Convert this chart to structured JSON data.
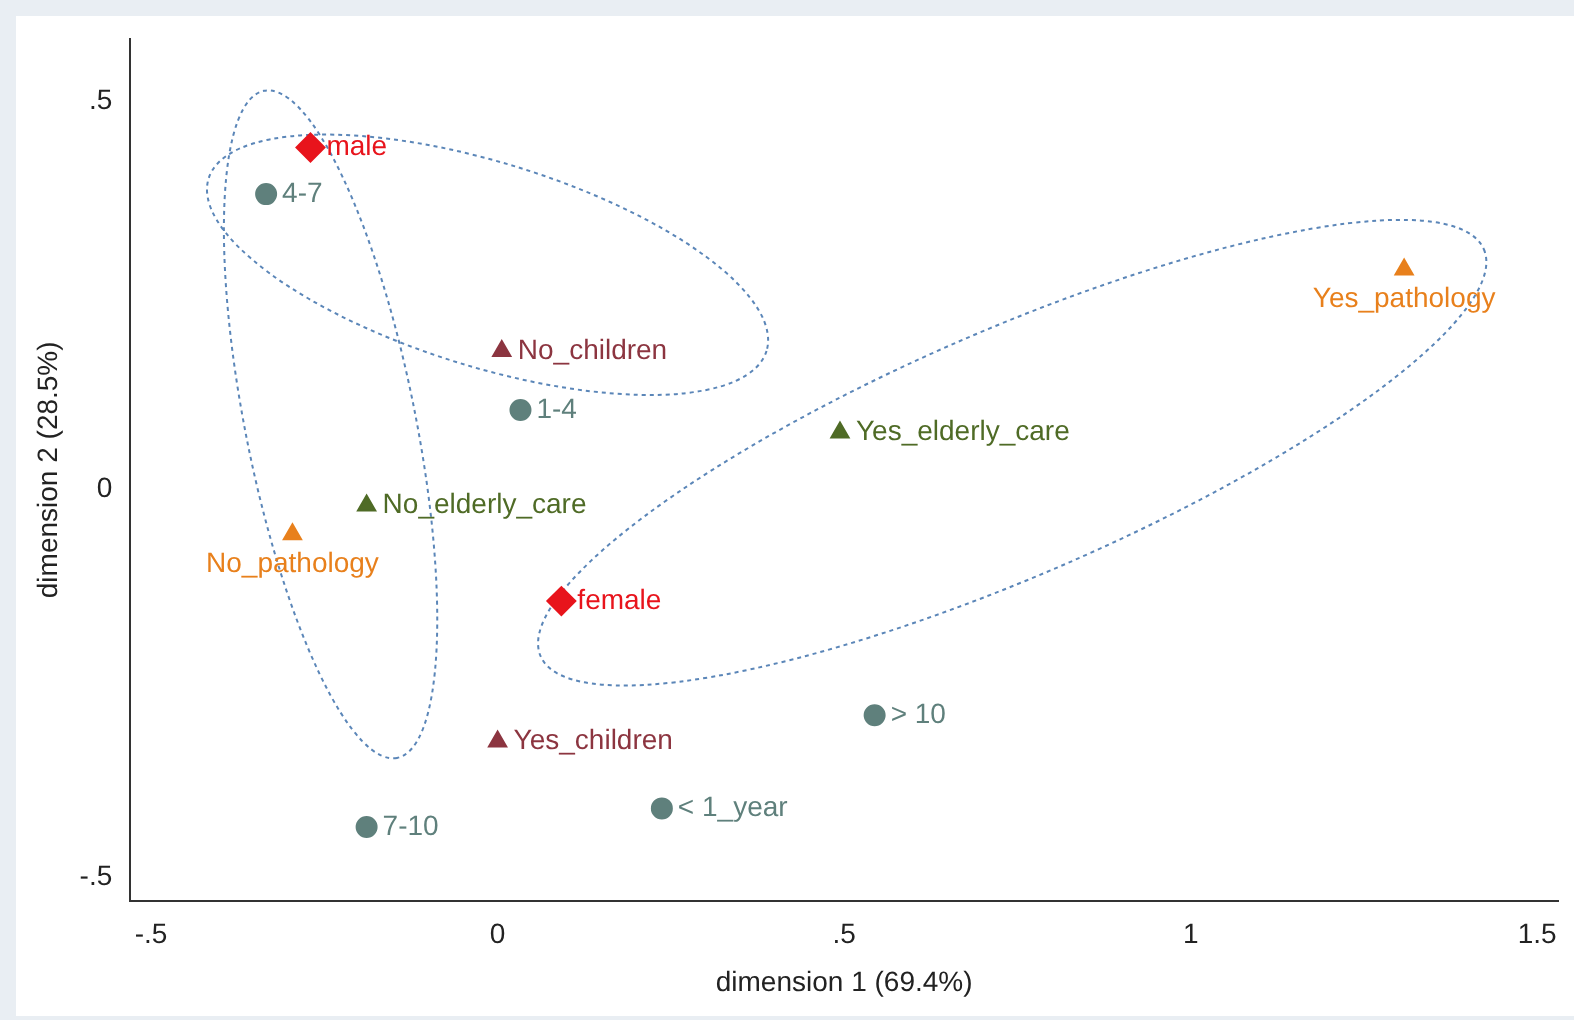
{
  "chart_data": {
    "type": "scatter",
    "xlabel": "dimension 1 (69.4%)",
    "ylabel": "dimension 2 (28.5%)",
    "xlim": [
      -0.53,
      1.53
    ],
    "ylim": [
      -0.53,
      0.58
    ],
    "xticks": [
      {
        "value": -0.5,
        "label": "-.5"
      },
      {
        "value": 0,
        "label": "0"
      },
      {
        "value": 0.5,
        "label": ".5"
      },
      {
        "value": 1,
        "label": "1"
      },
      {
        "value": 1.5,
        "label": "1.5"
      }
    ],
    "yticks": [
      {
        "value": -0.5,
        "label": "-.5"
      },
      {
        "value": 0,
        "label": "0"
      },
      {
        "value": 0.5,
        "label": ".5"
      }
    ],
    "grid": false,
    "legend": false,
    "series": [
      {
        "color": "#e8141c",
        "marker": "diamond",
        "x": [
          -0.27,
          0.092
        ],
        "values": [
          0.44,
          -0.144
        ],
        "value_labels": [
          "male",
          "female"
        ]
      },
      {
        "color": "#5f807c",
        "marker": "circle",
        "x": [
          -0.334,
          0.033,
          0.544,
          0.237,
          -0.189
        ],
        "values": [
          0.38,
          0.102,
          -0.291,
          -0.411,
          -0.435
        ],
        "value_labels": [
          "4-7",
          "1-4",
          "> 10",
          "< 1_year",
          "7-10"
        ]
      },
      {
        "color": "#8c3540",
        "marker": "triangle",
        "x": [
          0.006,
          0
        ],
        "values": [
          0.178,
          -0.325
        ],
        "value_labels": [
          "No_children",
          "Yes_children"
        ]
      },
      {
        "color": "#4f6b26",
        "marker": "triangle",
        "x": [
          0.494,
          -0.189
        ],
        "values": [
          0.073,
          -0.021
        ],
        "value_labels": [
          "Yes_elderly_care",
          "No_elderly_care"
        ]
      },
      {
        "color": "#e8801c",
        "marker": "triangle",
        "x": [
          1.308,
          -0.296
        ],
        "values": [
          0.283,
          -0.058
        ],
        "value_labels": [
          "Yes_pathology",
          "No_pathology"
        ]
      }
    ]
  }
}
